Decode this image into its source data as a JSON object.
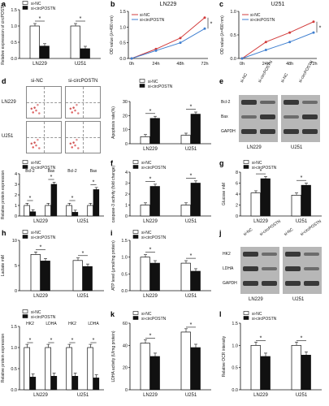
{
  "panels": {
    "a": {
      "label": "a"
    },
    "b": {
      "label": "b"
    },
    "c": {
      "label": "c"
    },
    "d": {
      "label": "d"
    },
    "e": {
      "label": "e"
    },
    "f": {
      "label": "f"
    },
    "g": {
      "label": "g"
    },
    "h": {
      "label": "h"
    },
    "i": {
      "label": "i"
    },
    "j": {
      "label": "j"
    },
    "k": {
      "label": "k"
    },
    "l": {
      "label": "l"
    }
  },
  "flow": {
    "col1": "si-NC",
    "col2": "si-circPOSTN",
    "row1": "LN229",
    "row2": "U251"
  },
  "blot_e": {
    "col_labels": [
      "si-NC",
      "si-circPOSTN",
      "si-NC",
      "si-circPOSTN"
    ],
    "rows": [
      "Bcl-2",
      "Bax",
      "GAPDH"
    ],
    "cells": [
      "LN229",
      "U251"
    ]
  },
  "blot_j": {
    "col_labels": [
      "si-NC",
      "si-circPOSTN",
      "si-NC",
      "si-circPOSTN"
    ],
    "rows": [
      "HK2",
      "LDHA",
      "GAPDH"
    ],
    "cells": [
      "LN229",
      "U251"
    ]
  },
  "colors": {
    "nc": "#d23b3b",
    "si": "#3f7fd0",
    "black": "#111111",
    "white": "#ffffff"
  },
  "chart_data": [
    {
      "id": "a",
      "type": "bar",
      "categories": [
        "LN229",
        "U251"
      ],
      "series": [
        {
          "name": "si-NC",
          "values": [
            1.0,
            1.0
          ]
        },
        {
          "name": "si-circPOSTN",
          "values": [
            0.38,
            0.3
          ]
        }
      ],
      "ylabel": "Relative expression of circPOSTN",
      "ylim": [
        0,
        1.5
      ],
      "yticks": [
        "0.0",
        "0.5",
        "1.0",
        "1.5"
      ],
      "sig": [
        "*",
        "*"
      ]
    },
    {
      "id": "b",
      "type": "line",
      "title": "LN229",
      "x": [
        "0h",
        "24h",
        "48h",
        "72h"
      ],
      "series": [
        {
          "name": "si-NC",
          "values": [
            0.0,
            0.3,
            0.65,
            1.3
          ]
        },
        {
          "name": "si-circPOSTN",
          "values": [
            0.0,
            0.25,
            0.5,
            0.95
          ]
        }
      ],
      "ylabel": "OD value (λ=490 nm)",
      "ylim": [
        0,
        1.5
      ],
      "yticks": [
        "0.0",
        "0.5",
        "1.0",
        "1.5"
      ],
      "sig": [
        "*"
      ]
    },
    {
      "id": "c",
      "type": "line",
      "title": "U251",
      "x": [
        "0h",
        "24h",
        "48h",
        "72h"
      ],
      "series": [
        {
          "name": "si-NC",
          "values": [
            0.0,
            0.35,
            0.55,
            0.78
          ]
        },
        {
          "name": "si-circPOSTN",
          "values": [
            0.0,
            0.18,
            0.35,
            0.55
          ]
        }
      ],
      "ylabel": "OD value (λ=490 nm)",
      "ylim": [
        0,
        1.0
      ],
      "yticks": [
        "0.0",
        "0.5",
        "1.0"
      ],
      "sig": [
        "*"
      ]
    },
    {
      "id": "d",
      "type": "bar",
      "categories": [
        "LN229",
        "U251"
      ],
      "series": [
        {
          "name": "si-NC",
          "values": [
            5,
            6
          ]
        },
        {
          "name": "si-circPOSTN",
          "values": [
            18,
            21
          ]
        }
      ],
      "ylabel": "Apoptosis rate(%)",
      "ylim": [
        0,
        30
      ],
      "yticks": [
        "0",
        "10",
        "20",
        "30"
      ],
      "sig": [
        "*",
        "*"
      ]
    },
    {
      "id": "e2",
      "type": "bar",
      "groups": [
        "LN229",
        "U251"
      ],
      "categories": [
        "Bcl-2",
        "Bax",
        "Bcl-2",
        "Bax"
      ],
      "series": [
        {
          "name": "si-NC",
          "values": [
            1.0,
            1.0,
            1.0,
            1.0
          ]
        },
        {
          "name": "si-circPOSTN",
          "values": [
            0.4,
            3.0,
            0.35,
            2.5
          ]
        }
      ],
      "ylabel": "Relative protein expression",
      "ylim": [
        0,
        4
      ],
      "yticks": [
        "0",
        "1",
        "2",
        "3",
        "4"
      ],
      "sig": [
        "*",
        "*",
        "*",
        "*"
      ]
    },
    {
      "id": "f",
      "type": "bar",
      "categories": [
        "LN229",
        "U251"
      ],
      "series": [
        {
          "name": "si-NC",
          "values": [
            1.0,
            1.0
          ]
        },
        {
          "name": "si-circPOSTN",
          "values": [
            2.7,
            3.0
          ]
        }
      ],
      "ylabel": "caspase-3 activity (fold change)",
      "ylim": [
        0,
        4
      ],
      "yticks": [
        "0",
        "1",
        "2",
        "3",
        "4"
      ],
      "sig": [
        "*",
        "*"
      ]
    },
    {
      "id": "g",
      "type": "bar",
      "categories": [
        "LN229",
        "U251"
      ],
      "series": [
        {
          "name": "si-NC",
          "values": [
            4.2,
            3.8
          ]
        },
        {
          "name": "si-circPOSTN",
          "values": [
            6.8,
            5.6
          ]
        }
      ],
      "ylabel": "Glucose mM",
      "ylim": [
        0,
        8
      ],
      "yticks": [
        "0",
        "2",
        "4",
        "6",
        "8"
      ],
      "sig": [
        "*",
        "*"
      ]
    },
    {
      "id": "h",
      "type": "bar",
      "categories": [
        "LN229",
        "U251"
      ],
      "series": [
        {
          "name": "si-NC",
          "values": [
            7.2,
            6.0
          ]
        },
        {
          "name": "si-circPOSTN",
          "values": [
            5.9,
            4.8
          ]
        }
      ],
      "ylabel": "Lactate mM",
      "ylim": [
        0,
        10
      ],
      "yticks": [
        "0",
        "5",
        "10"
      ],
      "sig": [
        "*",
        "*"
      ]
    },
    {
      "id": "i",
      "type": "bar",
      "categories": [
        "LN229",
        "U251"
      ],
      "series": [
        {
          "name": "si-NC",
          "values": [
            1.0,
            0.82
          ]
        },
        {
          "name": "si-circPOSTN",
          "values": [
            0.82,
            0.58
          ]
        }
      ],
      "ylabel": "ATP level (μmol/mg protein)",
      "ylim": [
        0,
        1.5
      ],
      "yticks": [
        "0.0",
        "0.5",
        "1.0",
        "1.5"
      ],
      "sig": [
        "*",
        "*"
      ]
    },
    {
      "id": "j2",
      "type": "bar",
      "groups": [
        "LN229",
        "U251"
      ],
      "categories": [
        "HK2",
        "LDHA",
        "HK2",
        "LDHA"
      ],
      "series": [
        {
          "name": "si-NC",
          "values": [
            1.0,
            1.0,
            1.0,
            1.0
          ]
        },
        {
          "name": "si-circPOSTN",
          "values": [
            0.3,
            0.32,
            0.32,
            0.28
          ]
        }
      ],
      "ylabel": "Relative protein expression",
      "ylim": [
        0,
        1.5
      ],
      "yticks": [
        "0.0",
        "0.5",
        "1.0",
        "1.5"
      ],
      "sig": [
        "*",
        "*",
        "*",
        "*"
      ]
    },
    {
      "id": "k",
      "type": "bar",
      "categories": [
        "LN229",
        "U251"
      ],
      "series": [
        {
          "name": "si-NC",
          "values": [
            42,
            52
          ]
        },
        {
          "name": "si-circPOSTN",
          "values": [
            30,
            38
          ]
        }
      ],
      "ylabel": "LDHA activity (U/mg protein)",
      "ylim": [
        0,
        60
      ],
      "yticks": [
        "0",
        "20",
        "40",
        "60"
      ],
      "sig": [
        "*",
        "*"
      ]
    },
    {
      "id": "l",
      "type": "bar",
      "categories": [
        "LN229",
        "U251"
      ],
      "series": [
        {
          "name": "si-NC",
          "values": [
            1.0,
            1.0
          ]
        },
        {
          "name": "si-circPOSTN",
          "values": [
            0.75,
            0.78
          ]
        }
      ],
      "ylabel": "Relative OCR intensity",
      "ylim": [
        0,
        1.5
      ],
      "yticks": [
        "0.0",
        "0.5",
        "1.0",
        "1.5"
      ],
      "sig": [
        "*",
        "*"
      ]
    }
  ]
}
